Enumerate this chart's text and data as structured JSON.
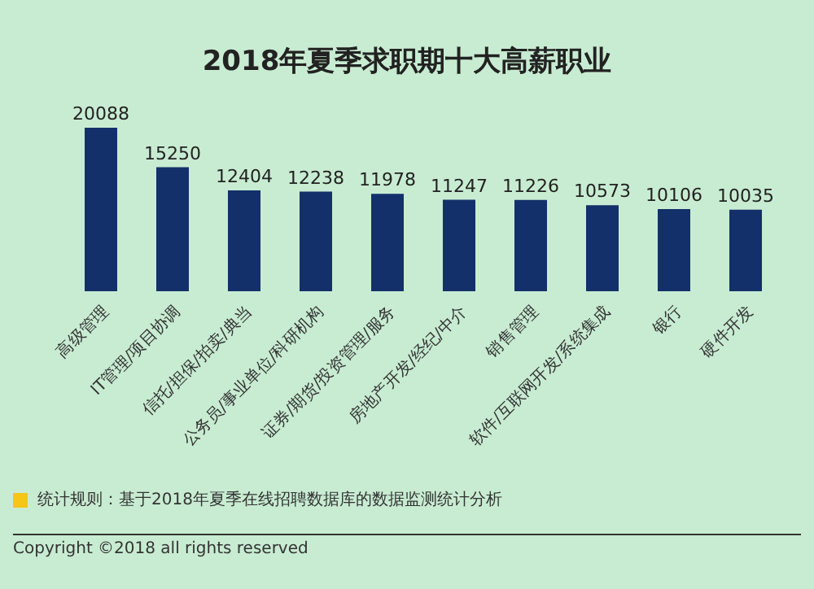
{
  "chart_data": {
    "type": "bar",
    "title": "2018年夏季求职期十大高薪职业",
    "categories": [
      "高级管理",
      "IT管理/项目协调",
      "信托/担保/拍卖/典当",
      "公务员/事业单位/科研机构",
      "证券/期货/投资管理/服务",
      "房地产开发/经纪/中介",
      "销售管理",
      "软件/互联网开发/系统集成",
      "银行",
      "硬件开发"
    ],
    "values": [
      20088,
      15250,
      12404,
      12238,
      11978,
      11247,
      11226,
      10573,
      10106,
      10035
    ],
    "color": "#14306a",
    "data_labels": true,
    "annotations": [
      "统计规则：基于2018年夏季在线招聘数据库的数据监测统计分析",
      "Copyright ©2018 all rights reserved"
    ]
  }
}
